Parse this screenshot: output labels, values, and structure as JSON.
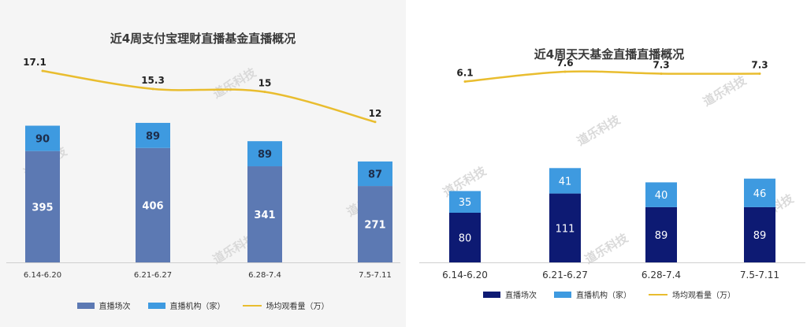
{
  "chart_data": [
    {
      "type": "bar",
      "title": "近4周支付宝理财直播基金直播概况",
      "categories": [
        "6.14-6.20",
        "6.21-6.27",
        "6.28-7.4",
        "7.5-7.11"
      ],
      "series": [
        {
          "name": "直播场次",
          "kind": "stacked-bar",
          "values": [
            395,
            406,
            341,
            271
          ],
          "color": "#5c79b3"
        },
        {
          "name": "直播机构（家）",
          "kind": "stacked-bar",
          "values": [
            90,
            89,
            89,
            87
          ],
          "color": "#3e9ae0"
        },
        {
          "name": "场均观看量（万）",
          "kind": "line",
          "values": [
            17.1,
            15.3,
            15,
            12
          ],
          "color": "#e9bd2f"
        }
      ],
      "watermark": "道乐科技"
    },
    {
      "type": "bar",
      "title": "近4周天天基金直播直播概况",
      "categories": [
        "6.14-6.20",
        "6.21-6.27",
        "6.28-7.4",
        "7.5-7.11"
      ],
      "series": [
        {
          "name": "直播场次",
          "kind": "stacked-bar",
          "values": [
            80,
            111,
            89,
            89
          ],
          "color": "#0d1a73"
        },
        {
          "name": "直播机构（家）",
          "kind": "stacked-bar",
          "values": [
            35,
            41,
            40,
            46
          ],
          "color": "#3e9ae0"
        },
        {
          "name": "场均观看量（万）",
          "kind": "line",
          "values": [
            6.1,
            7.6,
            7.3,
            7.3
          ],
          "color": "#e9bd2f"
        }
      ],
      "watermark": "道乐科技"
    }
  ]
}
